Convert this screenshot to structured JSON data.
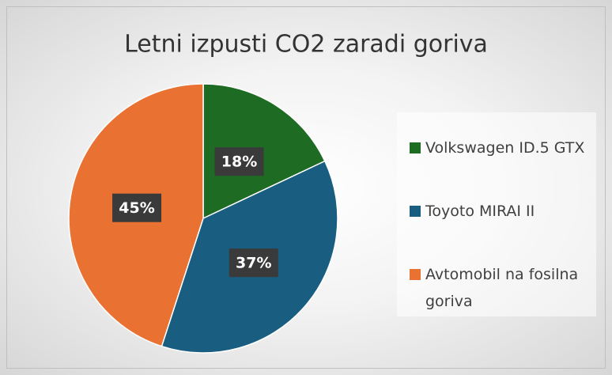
{
  "chart_data": {
    "type": "pie",
    "title": "Letni izpusti CO2 zaradi goriva",
    "categories": [
      "Volkswagen ID.5 GTX",
      "Toyoto MIRAI II",
      "Avtomobil na fosilna goriva"
    ],
    "values": [
      18,
      37,
      45
    ],
    "value_labels": [
      "18%",
      "37%",
      "45%"
    ],
    "colors": [
      "#1e6b24",
      "#195e80",
      "#e97132"
    ],
    "legend": "right"
  }
}
